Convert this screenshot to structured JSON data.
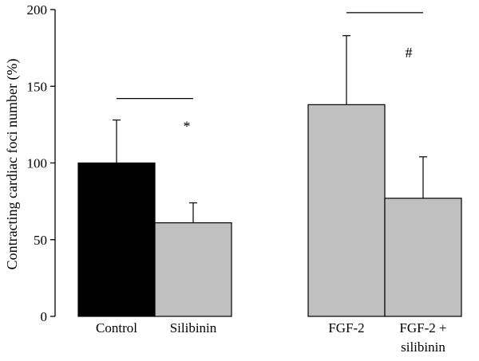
{
  "chart_data": {
    "type": "bar",
    "title": "",
    "xlabel": "",
    "ylabel": "Contracting cardiac foci number (%)",
    "ylim": [
      0,
      200
    ],
    "yticks": [
      0,
      50,
      100,
      150,
      200
    ],
    "categories": [
      {
        "label_lines": [
          "Control"
        ],
        "value": 100,
        "error": 28,
        "color": "#000000"
      },
      {
        "label_lines": [
          "Silibinin"
        ],
        "value": 61,
        "error": 13,
        "color": "#c0c0c0"
      },
      {
        "label_lines": [
          "FGF-2"
        ],
        "value": 138,
        "error": 45,
        "color": "#c0c0c0"
      },
      {
        "label_lines": [
          "FGF-2 +",
          "silibinin"
        ],
        "value": 77,
        "error": 27,
        "color": "#c0c0c0"
      }
    ],
    "annotations": [
      {
        "text": "*",
        "x_category": 1,
        "y": 124
      },
      {
        "text": "#",
        "x_category": 3,
        "y": 172
      }
    ],
    "brackets": [
      {
        "from_category": 0,
        "to_category": 1,
        "y": 142
      },
      {
        "from_category": 2,
        "to_category": 3,
        "y": 198
      }
    ],
    "grid": false
  }
}
